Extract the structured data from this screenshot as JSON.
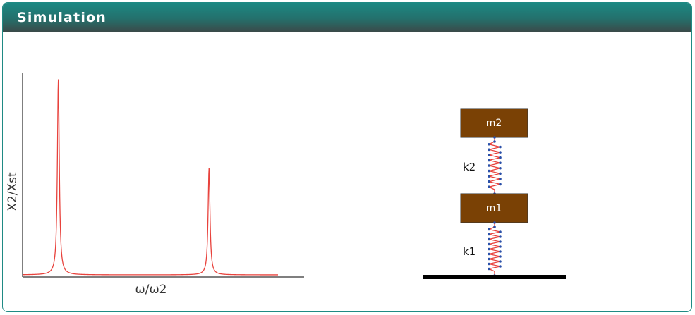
{
  "panel": {
    "title": "Simulation"
  },
  "chart_data": {
    "type": "line",
    "title": "",
    "xlabel": "ω/ω2",
    "ylabel": "X2/Xst",
    "series": [
      {
        "name": "",
        "color": "#e8423c",
        "peaks": [
          {
            "x_fraction": 0.14,
            "height_fraction": 0.97
          },
          {
            "x_fraction": 0.73,
            "height_fraction": 0.53
          }
        ]
      }
    ],
    "grid": false
  },
  "diagram": {
    "masses": [
      {
        "label": "m2",
        "color": "#7a4105"
      },
      {
        "label": "m1",
        "color": "#7a4105"
      }
    ],
    "springs": [
      {
        "label": "k2"
      },
      {
        "label": "k1"
      }
    ],
    "spring_color": "#e8423c",
    "node_color": "#2a4fa8"
  }
}
